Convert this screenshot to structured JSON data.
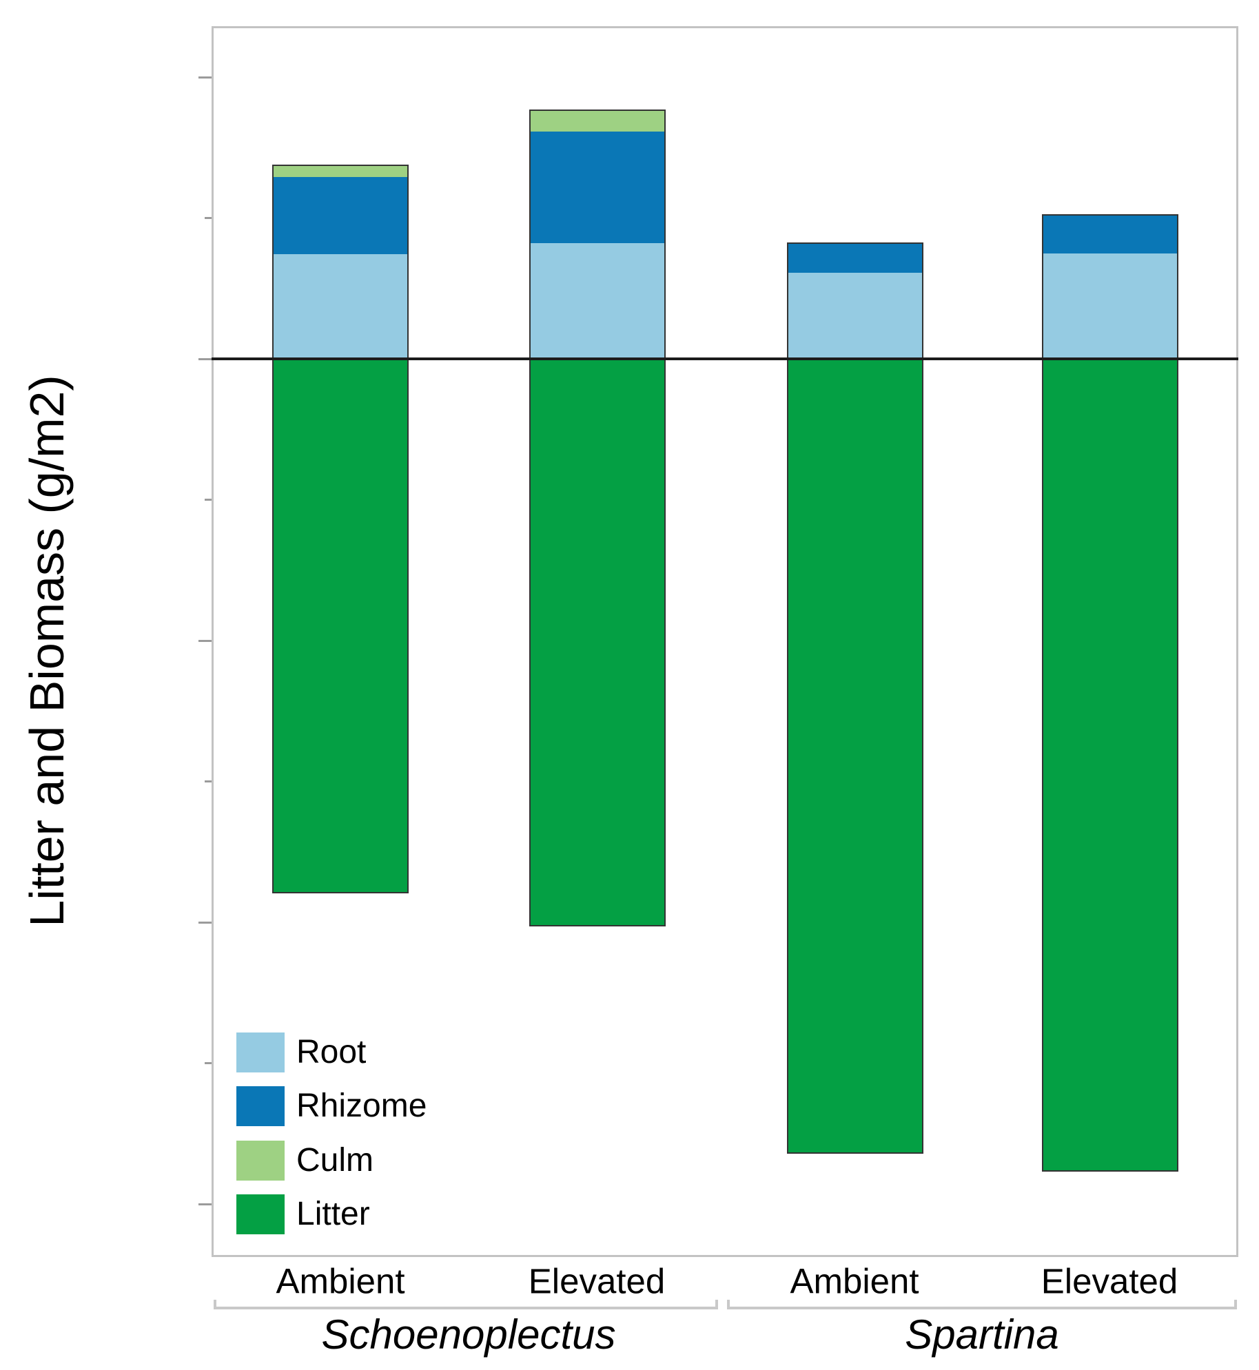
{
  "chart_data": {
    "type": "bar",
    "stacked": true,
    "title": "",
    "ylabel": "Litter and Biomass (g/m2)",
    "categories": [
      "Ambient",
      "Elevated",
      "Ambient",
      "Elevated"
    ],
    "groups": [
      {
        "label": "Schoenoplectus",
        "bars": [
          0,
          1
        ]
      },
      {
        "label": "Spartina",
        "bars": [
          2,
          3
        ]
      }
    ],
    "series": [
      {
        "name": "Root",
        "color": "#95cbe2",
        "values": [
          1860,
          2050,
          1530,
          1870
        ]
      },
      {
        "name": "Rhizome",
        "color": "#0a77b6",
        "values": [
          1370,
          1990,
          530,
          700
        ]
      },
      {
        "name": "Culm",
        "color": "#9ed183",
        "values": [
          220,
          380,
          0,
          0
        ]
      },
      {
        "name": "Litter",
        "color": "#04a044",
        "values": [
          -9490,
          -10070,
          -14110,
          -14430
        ]
      }
    ],
    "ylim": [
      -15920,
      5900
    ],
    "yticks_major": [
      5000,
      0,
      -5000,
      -10000,
      -15000
    ],
    "yticks_minor": [
      2500,
      -2500,
      -7500,
      -12500
    ],
    "grid": false,
    "legend": [
      "Root",
      "Rhizome",
      "Culm",
      "Litter"
    ],
    "legend_position": "inside-bottom-left",
    "colors": {
      "bar_border": "#333333",
      "zero_line": "#1c1c1c",
      "plot_border": "#c3c3c3",
      "tick": "#9b9b9b",
      "bracket": "#c9c9c9",
      "text": "#000000"
    }
  }
}
